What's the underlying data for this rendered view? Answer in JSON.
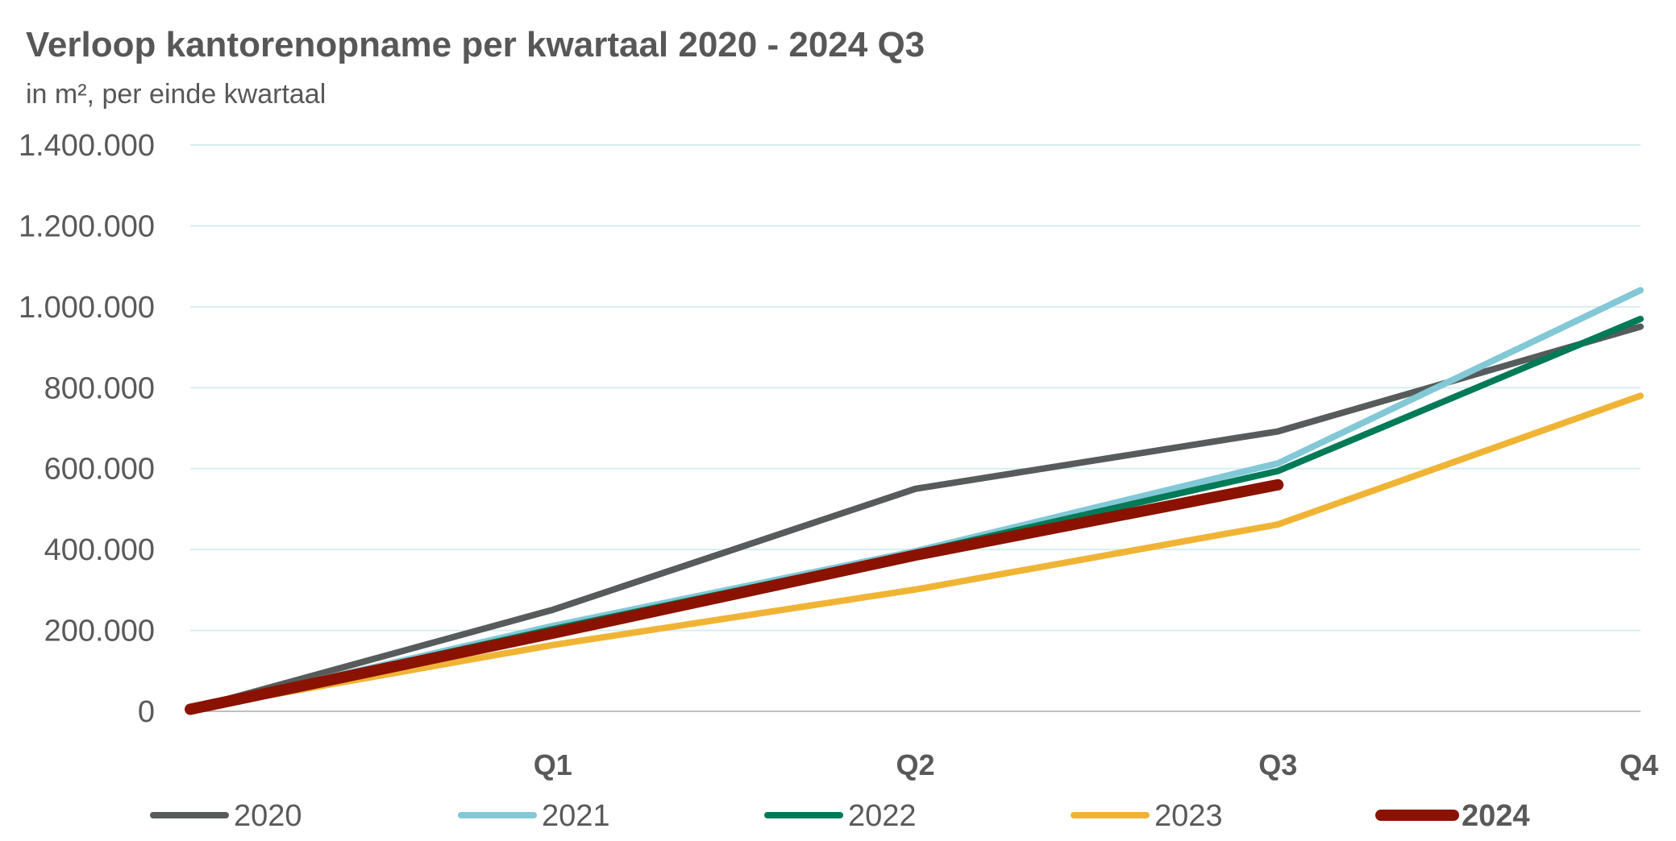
{
  "chart_data": {
    "type": "line",
    "title": "Verloop kantorenopname per kwartaal 2020 - 2024 Q3",
    "subtitle": "in m², per einde kwartaal",
    "categories": [
      "",
      "Q1",
      "Q2",
      "Q3",
      "Q4"
    ],
    "y_tick_labels": [
      "0",
      "200.000",
      "400.000",
      "600.000",
      "800.000",
      "1.000.000",
      "1.200.000",
      "1.400.000"
    ],
    "ylim": [
      0,
      1400000
    ],
    "grid": true,
    "legend_position": "bottom",
    "series": [
      {
        "name": "2020",
        "color": "#575B5B",
        "values": [
          5000,
          251000,
          550000,
          692000,
          951000
        ]
      },
      {
        "name": "2021",
        "color": "#82C8D6",
        "values": [
          5000,
          211000,
          396000,
          613000,
          1041000
        ]
      },
      {
        "name": "2022",
        "color": "#007A57",
        "values": [
          5000,
          203000,
          391000,
          594000,
          970000
        ]
      },
      {
        "name": "2023",
        "color": "#F0B435",
        "values": [
          5000,
          164000,
          301000,
          462000,
          780000
        ]
      },
      {
        "name": "2024",
        "color": "#8B1200",
        "bold": true,
        "values": [
          5000,
          193000,
          386000,
          560000,
          null
        ]
      }
    ]
  }
}
